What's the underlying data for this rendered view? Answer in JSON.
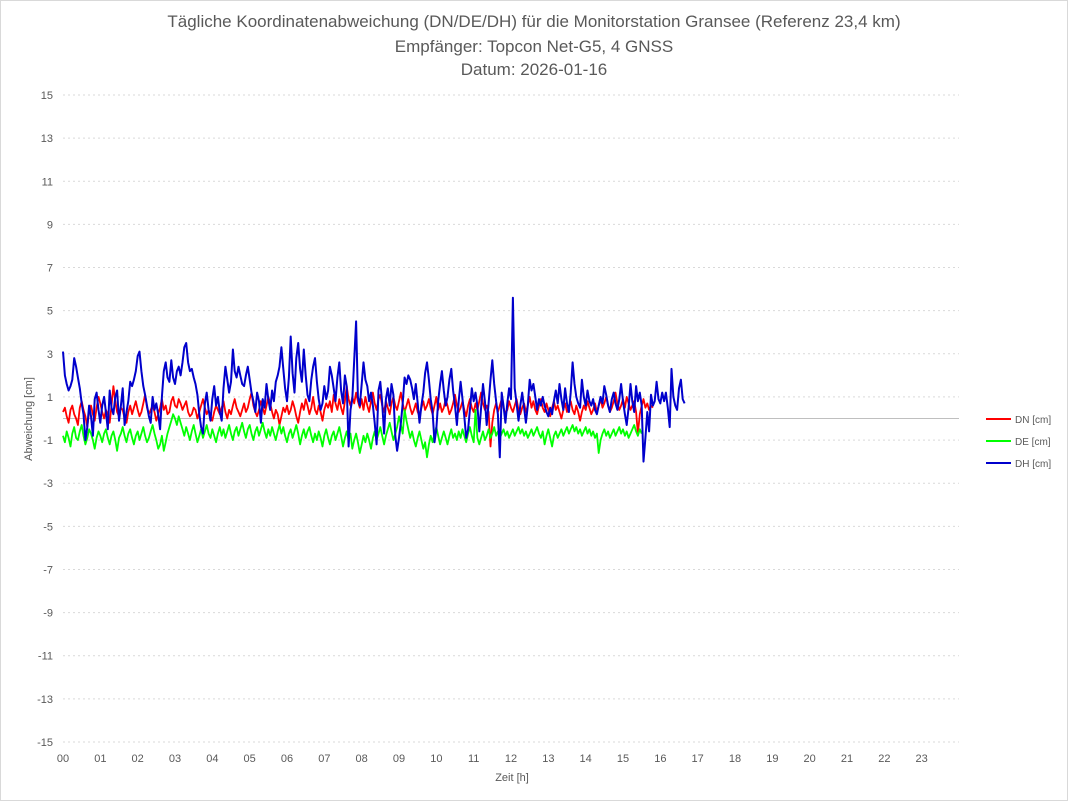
{
  "chart_data": {
    "type": "line",
    "title": "Tägliche Koordinatenabweichung (DN/DE/DH) für die Monitorstation Gransee (Referenz 23,4 km)",
    "subtitle": "Empfänger: Topcon Net-G5, 4 GNSS",
    "date_line": "Datum: 2026-01-16",
    "xlabel": "Zeit [h]",
    "ylabel": "Abweichung [cm]",
    "xlim": [
      0,
      24
    ],
    "ylim": [
      -15,
      15
    ],
    "x_ticks": [
      "00",
      "01",
      "02",
      "03",
      "04",
      "05",
      "06",
      "07",
      "08",
      "09",
      "10",
      "11",
      "12",
      "13",
      "14",
      "15",
      "16",
      "17",
      "18",
      "19",
      "20",
      "21",
      "22",
      "23"
    ],
    "y_ticks": [
      "15",
      "13",
      "11",
      "9",
      "7",
      "5",
      "3",
      "1",
      "-1",
      "-3",
      "-5",
      "-7",
      "-9",
      "-11",
      "-13",
      "-15"
    ],
    "gridlines": "horizontal, dotted",
    "legend_position": "right",
    "sample_interval_h": 0.05,
    "series": [
      {
        "name": "DN [cm]",
        "color": "#ff0000",
        "values": [
          0.3,
          0.5,
          0.1,
          -0.2,
          0.4,
          0.6,
          0.2,
          0.0,
          -0.3,
          0.5,
          0.8,
          0.4,
          0.1,
          -0.4,
          0.3,
          0.6,
          0.2,
          -0.1,
          0.5,
          1.0,
          0.7,
          0.3,
          0.0,
          0.4,
          0.2,
          -0.2,
          0.6,
          1.5,
          0.8,
          0.3,
          0.1,
          0.5,
          0.4,
          0.0,
          -0.2,
          0.3,
          0.6,
          0.2,
          0.5,
          0.8,
          0.4,
          0.1,
          0.3,
          0.7,
          1.1,
          0.5,
          0.2,
          0.4,
          0.6,
          0.3,
          -0.1,
          0.2,
          0.5,
          0.9,
          0.4,
          0.6,
          0.2,
          0.3,
          0.8,
          1.0,
          0.6,
          0.5,
          0.9,
          0.7,
          0.4,
          0.6,
          0.8,
          0.3,
          0.1,
          0.2,
          0.5,
          0.4,
          0.0,
          0.3,
          0.6,
          0.9,
          0.5,
          0.2,
          0.4,
          0.1,
          -0.1,
          0.3,
          0.6,
          0.4,
          0.2,
          0.5,
          0.8,
          0.3,
          0.0,
          0.4,
          0.2,
          0.6,
          0.9,
          0.5,
          0.3,
          0.1,
          0.4,
          0.7,
          0.3,
          0.5,
          0.9,
          1.2,
          0.6,
          0.3,
          0.1,
          0.4,
          0.8,
          0.5,
          0.2,
          0.6,
          1.0,
          0.7,
          0.3,
          0.0,
          0.4,
          0.2,
          -0.3,
          0.1,
          0.5,
          0.3,
          0.6,
          0.2,
          0.4,
          0.8,
          0.5,
          0.1,
          -0.2,
          0.3,
          0.7,
          0.4,
          0.9,
          0.6,
          0.2,
          0.5,
          1.0,
          0.4,
          0.2,
          0.6,
          0.3,
          -0.1,
          0.4,
          0.7,
          0.5,
          0.8,
          0.3,
          1.1,
          0.7,
          0.4,
          0.9,
          0.5,
          0.2,
          0.8,
          1.5,
          0.9,
          0.6,
          1.0,
          0.7,
          1.2,
          0.8,
          0.5,
          0.9,
          0.4,
          1.0,
          0.6,
          0.3,
          0.8,
          1.2,
          0.7,
          0.4,
          0.9,
          1.1,
          0.6,
          0.3,
          0.8,
          0.5,
          0.2,
          0.7,
          1.0,
          0.6,
          0.4,
          0.8,
          1.2,
          0.7,
          0.3,
          0.6,
          0.9,
          0.5,
          0.2,
          0.4,
          0.7,
          0.3,
          0.1,
          0.5,
          0.8,
          0.4,
          0.6,
          0.9,
          0.5,
          0.2,
          0.6,
          1.0,
          0.4,
          0.7,
          0.3,
          0.5,
          0.9,
          0.6,
          0.2,
          0.4,
          0.7,
          1.1,
          0.6,
          0.3,
          0.5,
          0.8,
          0.4,
          0.1,
          0.6,
          0.9,
          0.5,
          0.3,
          0.7,
          0.4,
          0.8,
          1.2,
          0.7,
          0.4,
          0.6,
          0.3,
          -1.3,
          -0.2,
          0.4,
          0.7,
          0.3,
          0.6,
          0.9,
          0.5,
          0.2,
          0.4,
          0.8,
          0.5,
          0.3,
          0.6,
          0.9,
          0.4,
          0.2,
          0.5,
          0.7,
          0.3,
          0.6,
          1.0,
          0.5,
          0.8,
          0.4,
          0.2,
          0.6,
          0.9,
          0.5,
          0.3,
          0.7,
          0.4,
          0.1,
          0.5,
          0.8,
          0.4,
          0.6,
          0.3,
          0.0,
          0.4,
          0.7,
          0.3,
          0.5,
          0.8,
          0.4,
          0.2,
          0.6,
          0.3,
          -0.1,
          0.3,
          0.6,
          0.4,
          0.8,
          0.5,
          0.2,
          0.4,
          0.7,
          0.3,
          0.6,
          0.9,
          0.5,
          0.7,
          1.0,
          0.6,
          0.3,
          0.5,
          0.8,
          1.2,
          0.7,
          0.4,
          0.6,
          0.9,
          0.5,
          1.0,
          0.7,
          0.4,
          0.6,
          0.8,
          0.3,
          -0.7,
          0.2,
          0.6,
          0.9,
          0.5,
          0.7,
          0.4,
          0.6,
          0.5
        ]
      },
      {
        "name": "DE [cm]",
        "color": "#00ff00",
        "values": [
          -0.8,
          -1.1,
          -0.6,
          -0.9,
          -1.3,
          -0.7,
          -0.4,
          -0.9,
          -1.0,
          -0.6,
          -0.3,
          -0.8,
          -1.2,
          -0.9,
          -0.5,
          -0.7,
          -1.0,
          -1.4,
          -0.9,
          -0.6,
          -0.8,
          -1.1,
          -0.7,
          -0.5,
          -0.9,
          -1.2,
          -0.8,
          -0.6,
          -1.0,
          -1.5,
          -0.9,
          -0.7,
          -0.4,
          -0.8,
          -1.1,
          -0.7,
          -0.5,
          -0.9,
          -1.2,
          -0.8,
          -0.6,
          -1.0,
          -0.7,
          -0.4,
          -0.8,
          -1.1,
          -0.9,
          -0.6,
          -0.3,
          -0.7,
          -1.0,
          -1.4,
          -1.2,
          -0.8,
          -1.5,
          -1.1,
          -0.7,
          -0.4,
          -0.1,
          0.2,
          0.0,
          -0.3,
          0.1,
          -0.2,
          -0.5,
          -0.8,
          -0.4,
          -0.7,
          -1.0,
          -0.6,
          -0.3,
          -0.7,
          -1.1,
          -0.8,
          -0.5,
          -0.9,
          -0.6,
          -0.3,
          -0.7,
          -0.9,
          -0.5,
          -0.8,
          -1.1,
          -0.7,
          -0.4,
          -0.8,
          -0.5,
          -0.9,
          -0.6,
          -0.3,
          -0.7,
          -1.0,
          -0.6,
          -0.4,
          -0.8,
          -0.5,
          -0.2,
          -0.6,
          -0.9,
          -0.5,
          -0.3,
          -0.7,
          -1.0,
          -0.6,
          -0.4,
          -0.8,
          -0.5,
          -0.2,
          -0.6,
          -0.9,
          -0.5,
          -0.8,
          -0.4,
          -0.7,
          -1.0,
          -0.6,
          -0.3,
          -0.7,
          -0.4,
          -0.8,
          -1.1,
          -0.7,
          -0.5,
          -0.9,
          -0.6,
          -0.3,
          -0.7,
          -1.2,
          -0.8,
          -0.5,
          -0.9,
          -0.6,
          -0.4,
          -0.8,
          -1.1,
          -0.7,
          -1.0,
          -0.6,
          -0.9,
          -1.3,
          -0.8,
          -0.5,
          -0.9,
          -1.2,
          -0.8,
          -0.6,
          -1.0,
          -0.7,
          -0.4,
          -0.8,
          -1.3,
          -0.9,
          -0.6,
          -1.0,
          -0.7,
          -1.4,
          -1.0,
          -0.7,
          -1.1,
          -1.6,
          -1.2,
          -0.8,
          -1.1,
          -0.7,
          -1.0,
          -1.4,
          -0.9,
          -0.6,
          -1.0,
          -0.7,
          -0.4,
          -0.8,
          -1.2,
          -0.8,
          -0.5,
          -0.2,
          -0.6,
          -1.0,
          -0.7,
          -0.4,
          0.1,
          -0.3,
          -0.7,
          0.4,
          -0.1,
          -0.5,
          -0.9,
          -0.6,
          -1.0,
          -1.3,
          -0.9,
          -0.6,
          -1.0,
          -1.4,
          -1.1,
          -1.8,
          -1.2,
          -0.8,
          -1.1,
          -0.7,
          -0.4,
          -0.8,
          -1.2,
          -0.9,
          -0.6,
          -0.9,
          -1.2,
          -0.8,
          -0.5,
          -0.9,
          -0.7,
          -1.0,
          -0.6,
          -0.9,
          -0.5,
          -0.8,
          -1.1,
          -0.7,
          -0.4,
          -0.8,
          -1.1,
          0.4,
          -0.9,
          -1.2,
          -0.9,
          -0.6,
          -1.0,
          -0.8,
          -0.5,
          -0.9,
          -0.7,
          -0.4,
          -0.8,
          -0.6,
          -0.9,
          -0.7,
          -0.5,
          -0.8,
          -0.6,
          -0.9,
          -0.7,
          -0.5,
          -0.8,
          -0.6,
          -0.4,
          -0.7,
          -0.5,
          -0.8,
          -0.6,
          -0.9,
          -0.7,
          -0.5,
          -0.8,
          -0.6,
          -0.4,
          -0.7,
          -0.9,
          -0.6,
          -1.2,
          -0.8,
          -0.5,
          -0.9,
          -1.3,
          -0.8,
          -0.6,
          -0.9,
          -0.7,
          -0.5,
          -0.8,
          -0.6,
          -0.4,
          -0.7,
          -0.5,
          -0.3,
          -0.6,
          -0.4,
          -0.7,
          -0.5,
          -0.8,
          -0.6,
          -0.4,
          -0.7,
          -0.5,
          -0.8,
          -0.6,
          -0.9,
          -0.7,
          -1.6,
          -1.0,
          -0.7,
          -0.5,
          -0.8,
          -0.6,
          -0.9,
          -0.7,
          -0.5,
          -0.8,
          -0.6,
          -0.4,
          -0.7,
          -0.5,
          -0.8,
          -0.6,
          -0.9,
          -0.7,
          -0.5,
          -0.3,
          -0.6,
          -0.8,
          -0.5,
          -0.7
        ]
      },
      {
        "name": "DH [cm]",
        "color": "#0000cc",
        "values": [
          3.1,
          2.0,
          1.6,
          1.3,
          1.5,
          1.8,
          2.8,
          2.4,
          1.9,
          1.4,
          0.7,
          0.2,
          -1.0,
          -0.4,
          0.6,
          0.1,
          -0.8,
          0.9,
          1.2,
          0.4,
          -0.2,
          0.6,
          1.0,
          0.3,
          -0.5,
          1.3,
          0.5,
          0.2,
          1.0,
          1.3,
          -0.1,
          0.6,
          1.4,
          -0.3,
          0.3,
          0.8,
          1.7,
          1.5,
          1.8,
          2.2,
          2.9,
          3.1,
          2.2,
          1.5,
          1.1,
          0.6,
          0.1,
          -0.2,
          1.0,
          0.4,
          0.7,
          0.2,
          -0.5,
          1.0,
          2.2,
          2.6,
          1.9,
          1.7,
          2.7,
          1.9,
          1.6,
          2.2,
          2.4,
          2.0,
          2.6,
          3.3,
          3.5,
          2.6,
          2.2,
          2.3,
          1.9,
          1.6,
          1.1,
          0.2,
          -0.4,
          -0.7,
          0.7,
          1.2,
          0.4,
          -0.1,
          0.9,
          1.5,
          0.6,
          1.0,
          0.3,
          -0.1,
          1.4,
          2.4,
          1.8,
          1.2,
          1.7,
          3.2,
          2.2,
          1.9,
          2.4,
          2.0,
          1.6,
          1.5,
          2.0,
          2.4,
          1.8,
          1.2,
          0.8,
          0.3,
          1.2,
          0.8,
          -0.2,
          0.9,
          0.5,
          1.6,
          0.9,
          0.4,
          1.3,
          0.8,
          1.7,
          2.0,
          2.4,
          3.3,
          2.3,
          1.4,
          0.8,
          1.9,
          3.8,
          2.1,
          1.2,
          2.8,
          3.5,
          2.3,
          1.7,
          3.2,
          2.0,
          1.1,
          0.8,
          1.8,
          2.4,
          2.8,
          1.7,
          0.9,
          0.4,
          0.7,
          1.5,
          0.9,
          1.3,
          2.4,
          2.0,
          1.4,
          0.8,
          1.9,
          2.6,
          1.3,
          0.7,
          2.0,
          1.5,
          -1.3,
          0.4,
          0.9,
          2.7,
          4.5,
          1.0,
          0.6,
          1.6,
          2.6,
          1.8,
          1.5,
          0.8,
          1.2,
          0.6,
          -0.2,
          -1.2,
          1.3,
          1.7,
          0.7,
          -0.7,
          0.9,
          1.4,
          0.6,
          1.6,
          1.1,
          -0.8,
          -1.5,
          -0.9,
          -0.2,
          0.7,
          1.9,
          1.6,
          2.0,
          1.8,
          1.4,
          0.9,
          1.6,
          0.7,
          -0.2,
          0.6,
          1.2,
          2.1,
          2.6,
          1.8,
          0.9,
          0.3,
          -1.1,
          -0.5,
          0.8,
          1.6,
          2.2,
          1.3,
          0.6,
          1.0,
          1.8,
          2.3,
          1.3,
          0.6,
          -0.3,
          0.8,
          1.7,
          0.9,
          0.1,
          -0.9,
          -0.5,
          0.4,
          1.4,
          0.8,
          1.2,
          0.6,
          -0.6,
          0.5,
          1.6,
          0.8,
          -0.3,
          0.7,
          1.8,
          2.7,
          1.6,
          0.8,
          0.2,
          -1.8,
          1.2,
          0.6,
          -0.2,
          0.7,
          1.4,
          0.9,
          5.6,
          1.4,
          0.7,
          -0.1,
          0.6,
          1.2,
          0.5,
          -0.2,
          0.6,
          1.8,
          1.3,
          1.6,
          1.0,
          0.4,
          0.9,
          0.6,
          1.0,
          0.6,
          0.3,
          0.1,
          0.5,
          0.2,
          0.8,
          1.3,
          0.7,
          1.6,
          0.9,
          0.4,
          1.4,
          0.7,
          0.3,
          1.2,
          2.6,
          1.6,
          1.0,
          0.7,
          0.5,
          1.8,
          1.0,
          0.6,
          1.3,
          0.8,
          0.6,
          0.9,
          0.4,
          0.2,
          0.6,
          1.0,
          0.7,
          1.5,
          1.1,
          0.6,
          0.3,
          0.9,
          1.2,
          0.7,
          0.4,
          0.9,
          1.6,
          0.8,
          0.2,
          -0.3,
          0.5,
          1.6,
          0.8,
          0.3,
          1.5,
          0.8,
          1.2,
          0.6,
          -2.0,
          -0.9,
          0.3,
          -0.6,
          1.1,
          0.6,
          0.8,
          1.7,
          0.9,
          0.7,
          1.2,
          0.8,
          1.2,
          0.5,
          -0.4,
          2.3,
          1.0,
          0.6,
          0.4,
          1.4,
          1.8,
          0.9,
          0.7
        ]
      }
    ]
  }
}
